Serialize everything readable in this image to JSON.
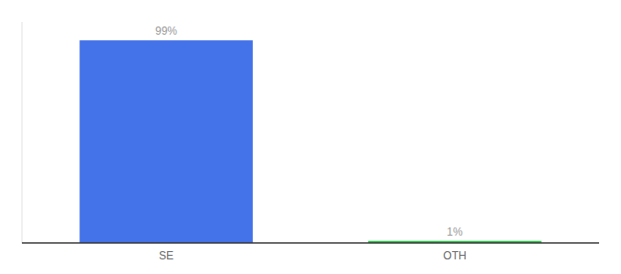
{
  "chart_data": {
    "type": "bar",
    "categories": [
      "SE",
      "OTH"
    ],
    "values": [
      99,
      1
    ],
    "value_labels": [
      "99%",
      "1%"
    ],
    "colors": [
      "#4472e8",
      "#22cc44"
    ],
    "ylim": [
      0,
      108
    ],
    "data_labels": true,
    "tick_labels": "x"
  }
}
